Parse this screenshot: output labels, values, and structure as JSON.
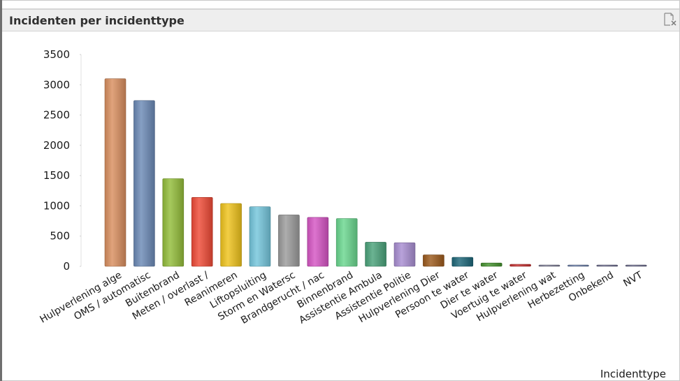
{
  "window": {
    "title": "Incidenten per incidenttype",
    "export_icon": "export-clear-icon"
  },
  "chart_data": {
    "type": "bar",
    "title": "Incidenten per incidenttype",
    "xlabel": "Incidenttype",
    "ylabel": "",
    "ylim": [
      0,
      3500
    ],
    "yticks": [
      0,
      500,
      1000,
      1500,
      2000,
      2500,
      3000,
      3500
    ],
    "grid": false,
    "legend": "none",
    "categories": [
      "Hulpverlening alge",
      "OMS / automatisc",
      "Buitenbrand",
      "Meten / overlast /",
      "Reanimeren",
      "Liftopsluiting",
      "Storm en Watersc",
      "Brandgerucht / nac",
      "Binnenbrand",
      "Assistentie Ambula",
      "Assistentie Politie",
      "Hulpverlening Dier",
      "Persoon te water",
      "Dier te water",
      "Voertuig te water",
      "Hulpverlening wat",
      "Herbezetting",
      "Onbekend",
      "NVT"
    ],
    "values": [
      3100,
      2740,
      1450,
      1140,
      1040,
      985,
      850,
      810,
      790,
      400,
      390,
      190,
      150,
      55,
      35,
      15,
      10,
      8,
      8
    ],
    "colors": [
      "#d98f5f",
      "#6c8ab6",
      "#93bd3a",
      "#ef4a36",
      "#efc31c",
      "#74c6dc",
      "#9b9b9b",
      "#d655c4",
      "#6ad78f",
      "#4aa27a",
      "#a98ed2",
      "#9c5a1c",
      "#1d6779",
      "#45922e",
      "#c43030",
      "#7d7d95",
      "#6c7fa8",
      "#6e6e8e",
      "#6e6e8e"
    ]
  }
}
